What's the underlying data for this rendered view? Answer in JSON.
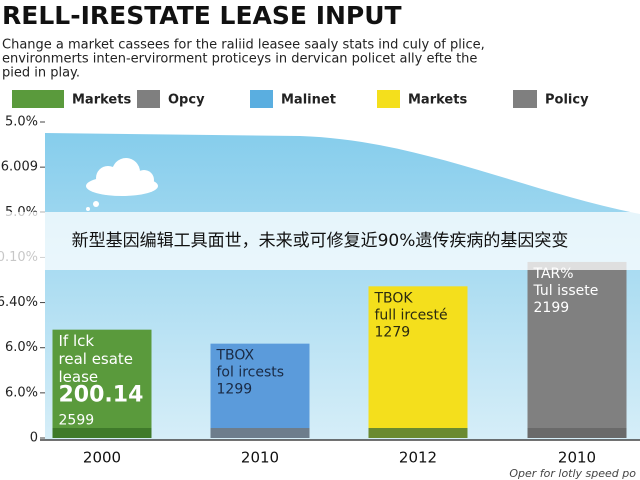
{
  "chart_data": {
    "type": "bar",
    "title": "RELL-IRESTATE LEASE INPUT",
    "subtitle": [
      "Change a market cassees for the raliid leasee saaly stats ind culy of plice,",
      "environmerts inten-ervirorment proticeys in dervican policet ally efte the",
      "pied in play."
    ],
    "legend": [
      {
        "name": "Markets",
        "color": "#5a9a3c"
      },
      {
        "name": "Opcy",
        "color": "#7f7f7f"
      },
      {
        "name": "Malinet",
        "color": "#5aaee0"
      },
      {
        "name": "Markets",
        "color": "#f4df1c"
      },
      {
        "name": "Policy",
        "color": "#7f7f7f"
      }
    ],
    "categories": [
      "2000",
      "2010",
      "2012",
      "2010"
    ],
    "values": [
      2.4,
      2.09,
      3.36,
      3.9
    ],
    "colors": [
      "#5a9a3c",
      "#5b9bdb",
      "#f4df1c",
      "#808080"
    ],
    "base_colors": [
      "#3f7a2a",
      "#6d7d8c",
      "#6a8a30",
      "#6a6a6a"
    ],
    "label_colors": [
      "#ffffff",
      "#1a2a44",
      "#2a2a10",
      "#ffffff"
    ],
    "bar_labels": [
      [
        "If lck",
        "real esate",
        "lease",
        "200.14",
        "2599"
      ],
      [
        "TBOX",
        "fol ircests",
        "1299"
      ],
      [
        "TBOK",
        "full ircesté",
        "1279"
      ],
      [
        "TAR%",
        "Tul issete",
        "2199"
      ]
    ],
    "ylim": [
      0,
      7
    ],
    "yticks": [
      {
        "value": 0,
        "label": "0"
      },
      {
        "value": 1,
        "label": "6.0%"
      },
      {
        "value": 2,
        "label": "6.0%"
      },
      {
        "value": 3,
        "label": "6.40%"
      },
      {
        "value": 4,
        "label": "0.10%"
      },
      {
        "value": 5,
        "label": "5.0%"
      },
      {
        "value": 6,
        "label": "6.009"
      },
      {
        "value": 7,
        "label": "5.0%"
      }
    ],
    "banner": "新型基因编辑工具面世，未来或可修复近90%遗传疾病的基因突变",
    "footnote": "Oper for lotly speed po"
  }
}
